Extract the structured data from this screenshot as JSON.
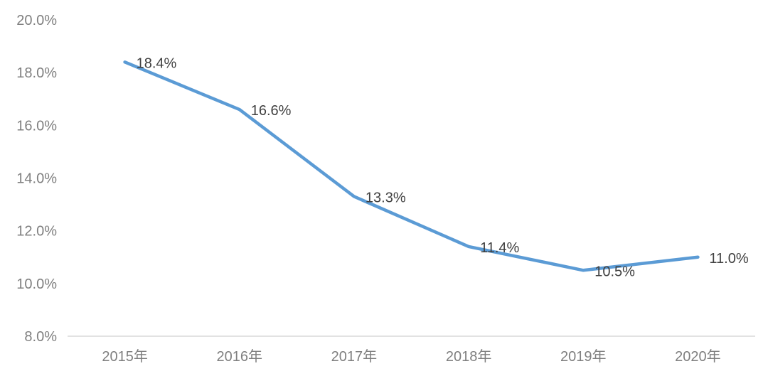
{
  "chart_data": {
    "type": "line",
    "title": "",
    "xlabel": "",
    "ylabel": "",
    "categories": [
      "2015年",
      "2016年",
      "2017年",
      "2018年",
      "2019年",
      "2020年"
    ],
    "series": [
      {
        "name": "series-1",
        "values": [
          18.4,
          16.6,
          13.3,
          11.4,
          10.5,
          11.0
        ],
        "color": "#5B9BD5"
      }
    ],
    "data_labels": [
      "18.4%",
      "16.6%",
      "13.3%",
      "11.4%",
      "10.5%",
      "11.0%"
    ],
    "y_axis": {
      "min": 8,
      "max": 20,
      "ticks": [
        {
          "value": 20,
          "label": "20.0%"
        },
        {
          "value": 18,
          "label": "18.0%"
        },
        {
          "value": 16,
          "label": "16.0%"
        },
        {
          "value": 14,
          "label": "14.0%"
        },
        {
          "value": 12,
          "label": "12.0%"
        },
        {
          "value": 10,
          "label": "10.0%"
        },
        {
          "value": 8,
          "label": "8.0%"
        }
      ]
    },
    "grid": false,
    "legend": "none",
    "colors": {
      "line": "#5B9BD5",
      "tick_label": "#7F7F7F",
      "data_label": "#404040",
      "axis_line": "#D9D9D9",
      "background": "#FFFFFF"
    }
  }
}
